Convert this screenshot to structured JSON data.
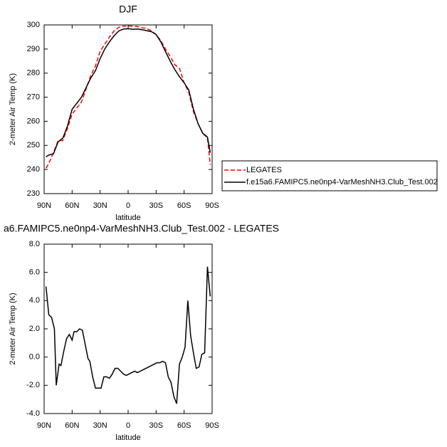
{
  "chart_data": [
    {
      "type": "line",
      "title": "DJF",
      "xlabel": "latitude",
      "ylabel": "2-meter Air Temp (K)",
      "x": [
        88,
        85,
        80,
        75,
        70,
        65,
        60,
        55,
        50,
        45,
        40,
        35,
        30,
        25,
        20,
        15,
        10,
        5,
        0,
        -5,
        -10,
        -15,
        -20,
        -25,
        -30,
        -35,
        -40,
        -45,
        -50,
        -55,
        -60,
        -65,
        -70,
        -75,
        -80,
        -85,
        -88
      ],
      "series": [
        {
          "name": "LEGATES",
          "color": "#ff0000",
          "dashed": true,
          "values": [
            240.5,
            242.5,
            247,
            252,
            252,
            257,
            263,
            265.5,
            268,
            273.5,
            279,
            283,
            289,
            292,
            295,
            297.5,
            299,
            299.5,
            299.6,
            299.5,
            299.3,
            298.8,
            298.5,
            297.5,
            296,
            293.5,
            290,
            287,
            283.5,
            282,
            276,
            272,
            264,
            259,
            255,
            253,
            242
          ]
        },
        {
          "name": "f.e15a6.FAMIPC5.ne0np4-VarMeshNH3.Club_Test.002",
          "color": "#000000",
          "dashed": false,
          "values": [
            245.3,
            246,
            246.5,
            251.5,
            253,
            258,
            265,
            267.5,
            270,
            274,
            278,
            281,
            286,
            290,
            293,
            295.5,
            297.5,
            298.3,
            298.4,
            298.2,
            298.3,
            298,
            297.6,
            297.2,
            296,
            293,
            289,
            285,
            281.5,
            278.5,
            276,
            273,
            265,
            259,
            255,
            253.5,
            247
          ]
        }
      ],
      "xlim": [
        90,
        -90
      ],
      "xticks": [
        {
          "value": 90,
          "label": "90N"
        },
        {
          "value": 60,
          "label": "60N"
        },
        {
          "value": 30,
          "label": "30N"
        },
        0,
        {
          "value": -30,
          "label": "30S"
        },
        {
          "value": -60,
          "label": "60S"
        },
        {
          "value": -90,
          "label": "90S"
        }
      ],
      "ylim": [
        230,
        300
      ],
      "yticks": [
        230,
        240,
        250,
        260,
        270,
        280,
        290,
        300
      ],
      "legend": "outside-right"
    },
    {
      "type": "line",
      "title": "a6.FAMIPC5.ne0np4-VarMeshNH3.Club_Test.002 - LEGATES",
      "xlabel": "latitude",
      "ylabel": "2-meter Air Temp (K)",
      "x": [
        88,
        85,
        82,
        79,
        77,
        74,
        72,
        69,
        66,
        63,
        60,
        58,
        55,
        52,
        49,
        46,
        43,
        41,
        38,
        35,
        32,
        29,
        26,
        23,
        20,
        17,
        14,
        11,
        8,
        5,
        2,
        -1,
        -4,
        -7,
        -10,
        -13,
        -16,
        -19,
        -22,
        -25,
        -28,
        -31,
        -34,
        -37,
        -40,
        -43,
        -46,
        -49,
        -52,
        -55,
        -58,
        -61,
        -64,
        -67,
        -70,
        -73,
        -76,
        -79,
        -82,
        -85,
        -88
      ],
      "values": [
        5.0,
        3.0,
        2.8,
        2.0,
        -2.0,
        -0.5,
        -0.6,
        0.4,
        1.3,
        1.6,
        1.2,
        1.8,
        1.8,
        2.0,
        1.9,
        0.9,
        -0.1,
        -0.3,
        -1.4,
        -2.2,
        -2.2,
        -2.2,
        -1.4,
        -1.4,
        -1.5,
        -1.2,
        -0.8,
        -0.8,
        -1.0,
        -1.2,
        -1.3,
        -1.2,
        -1.1,
        -1.0,
        -1.1,
        -1.0,
        -0.9,
        -0.8,
        -0.7,
        -0.6,
        -0.5,
        -0.4,
        -0.4,
        -0.3,
        -0.4,
        -1.4,
        -1.8,
        -2.8,
        -3.3,
        -0.5,
        0.0,
        0.7,
        4.0,
        1.5,
        0.3,
        -0.8,
        -0.7,
        0.2,
        0.3,
        6.4,
        4.3
      ],
      "color": "#000000",
      "xlim": [
        90,
        -90
      ],
      "xticks": [
        {
          "value": 90,
          "label": "90N"
        },
        {
          "value": 60,
          "label": "60N"
        },
        {
          "value": 30,
          "label": "30N"
        },
        0,
        {
          "value": -30,
          "label": "30S"
        },
        {
          "value": -60,
          "label": "60S"
        },
        {
          "value": -90,
          "label": "90S"
        }
      ],
      "ylim": [
        -4,
        8
      ],
      "yticks": [
        {
          "value": -4,
          "label": "-4.0"
        },
        {
          "value": -2,
          "label": "-2.0"
        },
        {
          "value": 0,
          "label": "0.0"
        },
        {
          "value": 2,
          "label": "2.0"
        },
        {
          "value": 4,
          "label": "4.0"
        },
        {
          "value": 6,
          "label": "6.0"
        },
        {
          "value": 8,
          "label": "8.0"
        }
      ]
    }
  ]
}
